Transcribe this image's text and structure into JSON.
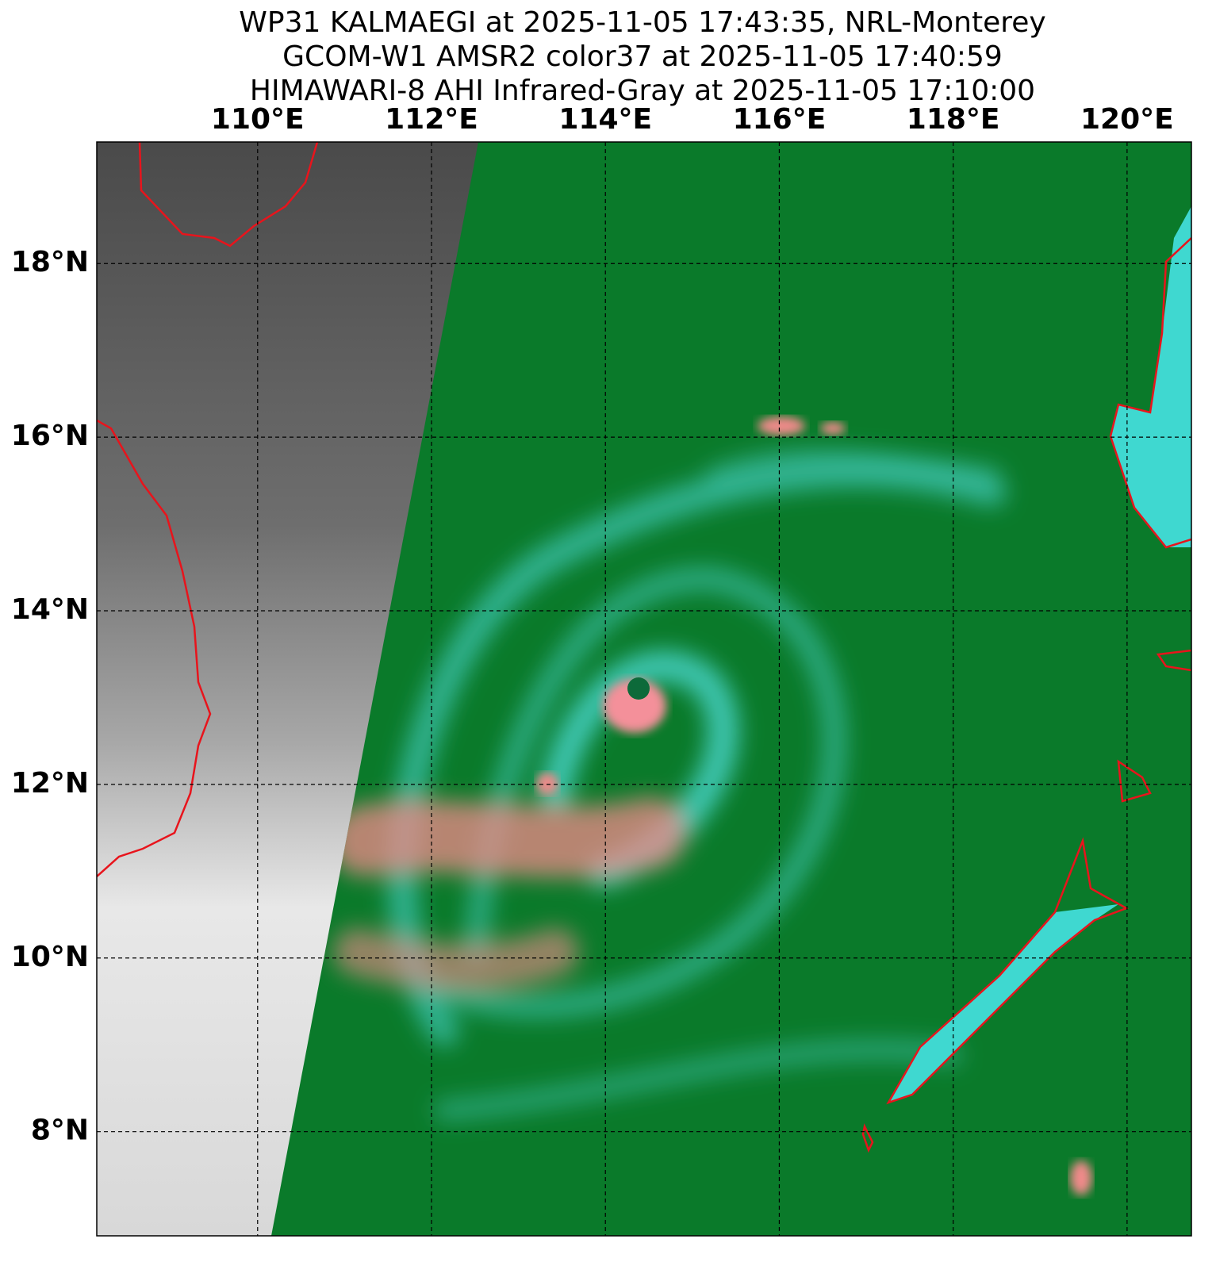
{
  "map": {
    "title": [
      "WP31 KALMAEGI at 2025-11-05 17:43:35, NRL-Monterey",
      "GCOM-W1 AMSR2 color37 at 2025-11-05 17:40:59",
      "HIMAWARI-8 AHI Infrared-Gray at 2025-11-05 17:10:00"
    ],
    "xlim": [
      108.15,
      120.74
    ],
    "ylim": [
      6.8,
      19.4
    ],
    "xticks": [
      {
        "value": 110,
        "label": "110°E"
      },
      {
        "value": 112,
        "label": "112°E"
      },
      {
        "value": 114,
        "label": "114°E"
      },
      {
        "value": 116,
        "label": "116°E"
      },
      {
        "value": 118,
        "label": "118°E"
      },
      {
        "value": 120,
        "label": "120°E"
      }
    ],
    "yticks": [
      {
        "value": 18,
        "label": "18°N"
      },
      {
        "value": 16,
        "label": "16°N"
      },
      {
        "value": 14,
        "label": "14°N"
      },
      {
        "value": 12,
        "label": "12°N"
      },
      {
        "value": 10,
        "label": "10°N"
      },
      {
        "value": 8,
        "label": "8°N"
      }
    ]
  }
}
